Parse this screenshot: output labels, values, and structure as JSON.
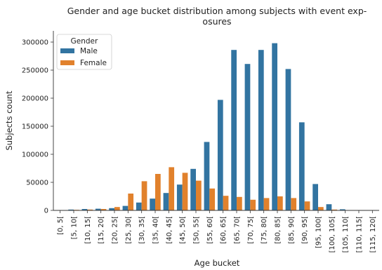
{
  "chart_data": {
    "type": "bar",
    "title_lines": [
      "Gender and age bucket distribution among subjects with event exp-",
      "osures"
    ],
    "xlabel": "Age bucket",
    "ylabel": "Subjects count",
    "ylim": [
      0,
      320000
    ],
    "yticks": [
      0,
      50000,
      100000,
      150000,
      200000,
      250000,
      300000
    ],
    "grid": false,
    "legend_position": "top-left",
    "legend_title": "Gender",
    "categories": [
      "[0, 5[",
      "[5, 10[",
      "[10, 15[",
      "[15, 20[",
      "[20, 25[",
      "[25, 30[",
      "[30, 35[",
      "[35, 40[",
      "[40, 45[",
      "[45, 50[",
      "[50, 55[",
      "[55, 60[",
      "[60, 65[",
      "[65, 70[",
      "[70, 75[",
      "[75, 80[",
      "[80, 85[",
      "[85, 90[",
      "[90, 95[",
      "[95, 100[",
      "[100, 105[",
      "[105, 110[",
      "[110, 115[",
      "[115, 120["
    ],
    "series": [
      {
        "name": "Male",
        "color": "#3274a1",
        "values": [
          500,
          1500,
          2500,
          3000,
          4000,
          8000,
          14000,
          21000,
          31000,
          46000,
          74000,
          122000,
          197000,
          286000,
          261000,
          286000,
          298000,
          252000,
          157000,
          47000,
          11000,
          2000,
          300,
          100
        ]
      },
      {
        "name": "Female",
        "color": "#e1812c",
        "values": [
          400,
          1000,
          1500,
          2500,
          6000,
          30000,
          52000,
          65000,
          77000,
          67000,
          53000,
          39000,
          26000,
          24000,
          19000,
          22000,
          25000,
          22000,
          16000,
          6000,
          1500,
          400,
          100,
          50
        ]
      }
    ]
  }
}
